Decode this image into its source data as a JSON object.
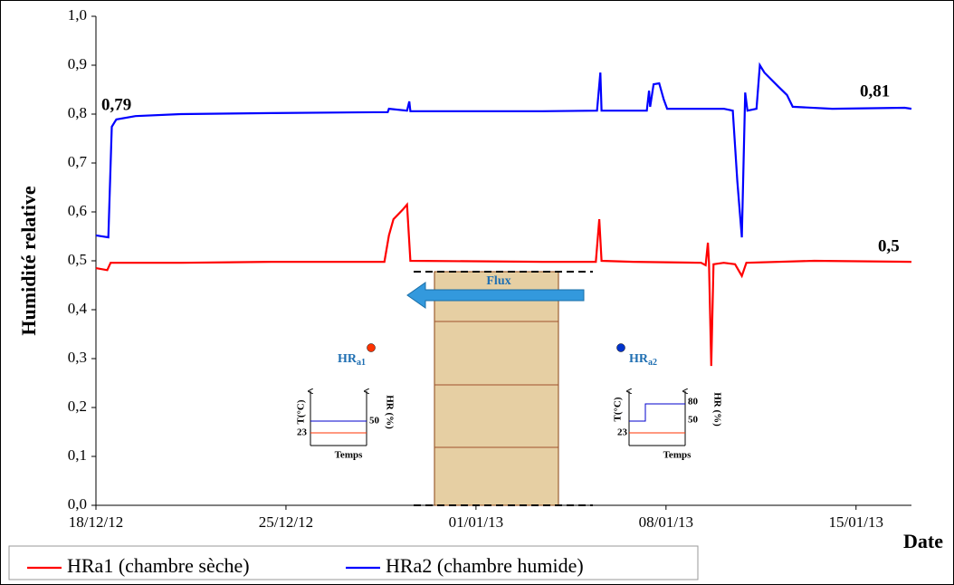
{
  "chart_data": {
    "type": "line",
    "y_label": "Humidité relative",
    "x_label": "Date",
    "xlim": [
      "18/12/12 00:00",
      "17/01/13 01:00"
    ],
    "xticks": [
      "18/12/12",
      "25/12/12",
      "01/01/13",
      "08/01/13",
      "15/01/13"
    ],
    "ylim": [
      0,
      1
    ],
    "yticks": [
      {
        "value": 0,
        "label": "0,0"
      },
      {
        "value": 0.1,
        "label": "0,1"
      },
      {
        "value": 0.2,
        "label": "0,2"
      },
      {
        "value": 0.3,
        "label": "0,3"
      },
      {
        "value": 0.4,
        "label": "0,4"
      },
      {
        "value": 0.5,
        "label": "0,5"
      },
      {
        "value": 0.6,
        "label": "0,6"
      },
      {
        "value": 0.7,
        "label": "0,7"
      },
      {
        "value": 0.8,
        "label": "0,8"
      },
      {
        "value": 0.9,
        "label": "0,9"
      },
      {
        "value": 1,
        "label": "1,0"
      }
    ],
    "grid": false,
    "series": [
      {
        "name": "HRa1 (chambre sèche)",
        "color": "#ff0000",
        "x": [
          "18/12/12 00:00",
          "18/12/12 10:00",
          "18/12/12 13:00",
          "18/12/12 18:00",
          "21/12/12 03:00",
          "24/12/12 11:00",
          "28/12/12 15:00",
          "28/12/12 19:00",
          "28/12/12 23:00",
          "29/12/12 07:00",
          "29/12/12 11:00",
          "29/12/12 14:00",
          "03/01/13 11:00",
          "05/01/13 10:00",
          "05/01/13 13:00",
          "05/01/13 15:00",
          "06/01/13 19:00",
          "09/01/13 07:00",
          "09/01/13 11:00",
          "09/01/13 13:00",
          "09/01/13 14:00",
          "09/01/13 16:00",
          "09/01/13 18:00",
          "10/01/13 03:00",
          "10/01/13 13:00",
          "10/01/13 19:00",
          "10/01/13 23:00",
          "13/01/13 11:00",
          "17/01/13 01:00"
        ],
        "values": [
          0.485,
          0.481,
          0.496,
          0.496,
          0.496,
          0.498,
          0.498,
          0.552,
          0.585,
          0.604,
          0.615,
          0.5,
          0.498,
          0.498,
          0.585,
          0.5,
          0.498,
          0.496,
          0.491,
          0.537,
          0.496,
          0.285,
          0.493,
          0.496,
          0.493,
          0.469,
          0.496,
          0.5,
          0.498
        ]
      },
      {
        "name": "HRa2 (chambre humide)",
        "color": "#0000ff",
        "x": [
          "18/12/12 00:00",
          "18/12/12 11:00",
          "18/12/12 14:00",
          "18/12/12 18:00",
          "19/12/12 11:00",
          "21/12/12 03:00",
          "24/12/12 11:00",
          "28/12/12 18:00",
          "28/12/12 19:00",
          "29/12/12 11:00",
          "29/12/12 13:00",
          "29/12/12 14:00",
          "03/01/13 11:00",
          "05/01/13 11:00",
          "05/01/13 14:00",
          "05/01/13 15:00",
          "07/01/13 07:00",
          "07/01/13 09:00",
          "07/01/13 10:00",
          "07/01/13 13:00",
          "07/01/13 18:00",
          "07/01/13 22:00",
          "08/01/13 01:00",
          "10/01/13 03:00",
          "10/01/13 11:00",
          "10/01/13 15:00",
          "10/01/13 19:00",
          "10/01/13 22:00",
          "11/01/13 00:00",
          "11/01/13 08:00",
          "11/01/13 11:00",
          "11/01/13 15:00",
          "12/01/13 03:00",
          "12/01/13 11:00",
          "12/01/13 16:00",
          "14/01/13 03:00",
          "16/01/13 19:00",
          "17/01/13 01:00"
        ],
        "values": [
          0.552,
          0.548,
          0.774,
          0.789,
          0.796,
          0.8,
          0.802,
          0.804,
          0.811,
          0.807,
          0.826,
          0.806,
          0.806,
          0.807,
          0.885,
          0.807,
          0.807,
          0.848,
          0.815,
          0.861,
          0.863,
          0.83,
          0.811,
          0.811,
          0.807,
          0.663,
          0.548,
          0.844,
          0.807,
          0.811,
          0.9,
          0.885,
          0.857,
          0.839,
          0.815,
          0.811,
          0.813,
          0.811
        ]
      }
    ],
    "annotations": [
      "0,79",
      "0,81",
      "0,5"
    ],
    "legend": "bottom"
  },
  "inset": {
    "flux": "Flux",
    "left": {
      "label": "HR",
      "sub": "a1",
      "t_axis": "T(°C)",
      "hr_axis": "HR (%)",
      "t_value": "23",
      "hr_value": "50",
      "time_axis": "Temps"
    },
    "right": {
      "label": "HR",
      "sub": "a2",
      "t_axis": "T(°C)",
      "hr_axis": "HR (%)",
      "t_value": "23",
      "hr_low": "50",
      "hr_high": "80",
      "time_axis": "Temps"
    }
  }
}
